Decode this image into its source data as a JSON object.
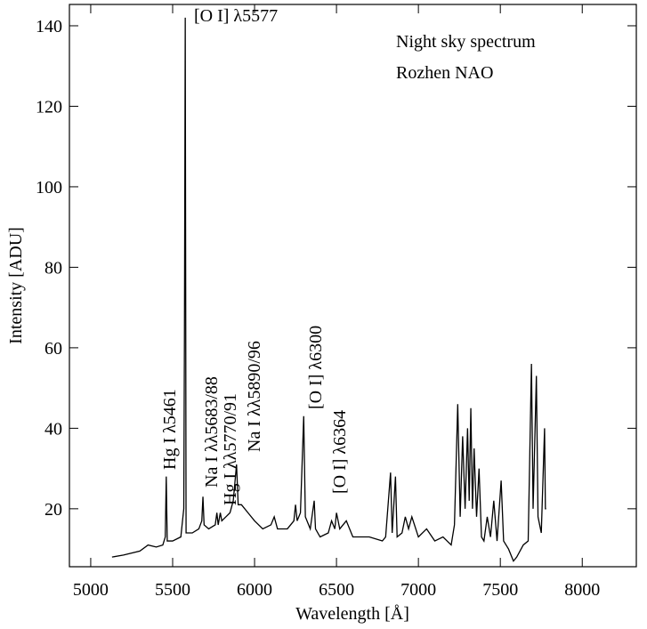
{
  "chart_data": {
    "type": "line",
    "title": "Night sky spectrum",
    "subtitle": "Rozhen NAO",
    "x_label": "Wavelength [Å]",
    "y_label": "Intensity [ADU]",
    "annotations": [
      "[O I] λ5577",
      "Hg I λ5461",
      "Na I λλ5683/88",
      "Hg I λλ5770/91",
      "Na I λλ5890/96",
      "[O I] λ6300",
      "[O I] λ6364"
    ],
    "xlim": [
      4870,
      8330
    ],
    "ylim": [
      5.6,
      145.3
    ],
    "xticks": [
      5000,
      5500,
      6000,
      6500,
      7000,
      7500,
      8000
    ],
    "yticks": [
      20,
      40,
      60,
      80,
      100,
      120,
      140
    ],
    "grid": false,
    "series": [
      {
        "color": "#000000",
        "x": [
          5130,
          5200,
          5300,
          5350,
          5400,
          5440,
          5455,
          5461,
          5467,
          5500,
          5550,
          5568,
          5572,
          5577,
          5582,
          5620,
          5660,
          5678,
          5685,
          5692,
          5720,
          5760,
          5770,
          5778,
          5791,
          5800,
          5850,
          5870,
          5890,
          5900,
          5920,
          5960,
          6000,
          6050,
          6100,
          6120,
          6140,
          6200,
          6240,
          6250,
          6260,
          6280,
          6300,
          6310,
          6340,
          6364,
          6372,
          6400,
          6450,
          6470,
          6490,
          6500,
          6520,
          6560,
          6600,
          6700,
          6780,
          6800,
          6830,
          6840,
          6860,
          6870,
          6900,
          6920,
          6940,
          6960,
          7000,
          7050,
          7100,
          7150,
          7200,
          7220,
          7240,
          7255,
          7270,
          7285,
          7300,
          7310,
          7320,
          7330,
          7340,
          7355,
          7370,
          7385,
          7400,
          7420,
          7440,
          7460,
          7480,
          7505,
          7520,
          7550,
          7580,
          7600,
          7640,
          7670,
          7690,
          7700,
          7720,
          7730,
          7750,
          7770,
          7775,
          7780
        ],
        "values": [
          8,
          8.5,
          9.5,
          11,
          10.5,
          11,
          13,
          28,
          12,
          12,
          13,
          20,
          62,
          142,
          14,
          14,
          15,
          17,
          23,
          16,
          15,
          16,
          19,
          16,
          19,
          17,
          19,
          22,
          31,
          21,
          21,
          19,
          17,
          15,
          16,
          18,
          15,
          15,
          17,
          21,
          17,
          19,
          43,
          18,
          15,
          22,
          15,
          13,
          14,
          17,
          15,
          19,
          15,
          17,
          13,
          13,
          12,
          13,
          29,
          14,
          28,
          13,
          14,
          18,
          15,
          18,
          13,
          15,
          12,
          13,
          11,
          16,
          46,
          18,
          38,
          20,
          40,
          22,
          45,
          20,
          35,
          18,
          30,
          13,
          12,
          18,
          13,
          22,
          12,
          27,
          12,
          10,
          7,
          8,
          11,
          12,
          56,
          20,
          53,
          18,
          14,
          40,
          20,
          20
        ]
      }
    ]
  }
}
